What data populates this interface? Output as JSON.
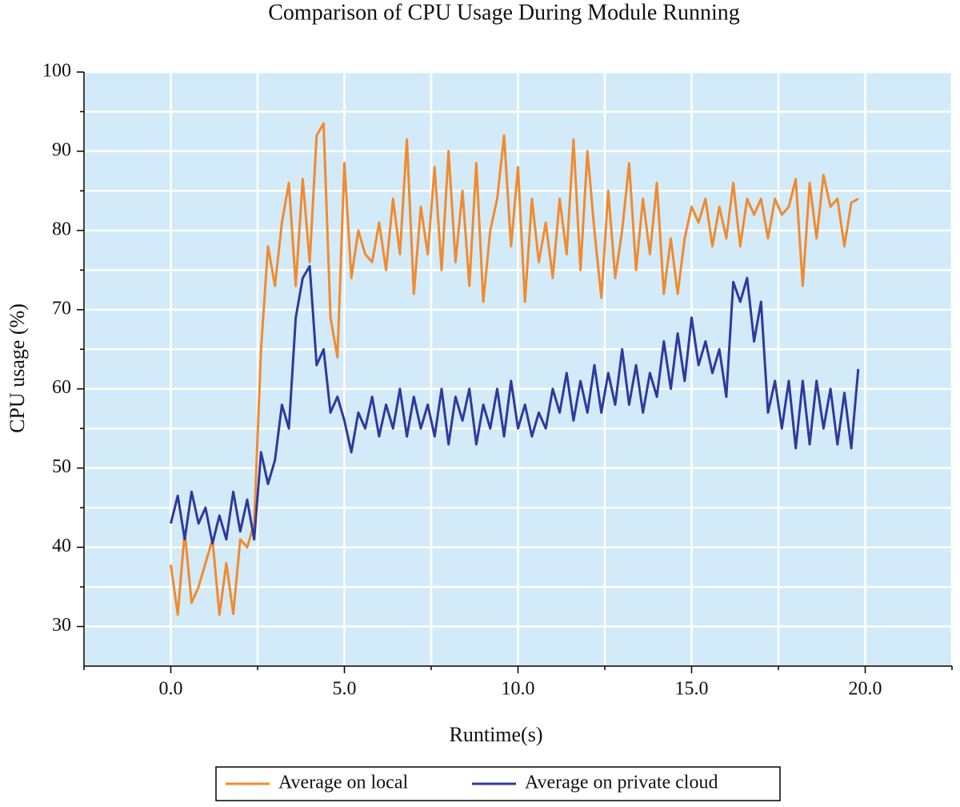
{
  "chart_data": {
    "type": "line",
    "title": "Comparison of CPU Usage During Module Running",
    "xlabel": "Runtime(s)",
    "ylabel": "CPU usage (%)",
    "x": [
      0,
      0.2,
      0.4,
      0.6,
      0.8,
      1.0,
      1.2,
      1.4,
      1.6,
      1.8,
      2.0,
      2.2,
      2.4,
      2.6,
      2.8,
      3.0,
      3.2,
      3.4,
      3.6,
      3.8,
      4.0,
      4.2,
      4.4,
      4.6,
      4.8,
      5.0,
      5.2,
      5.4,
      5.6,
      5.8,
      6.0,
      6.2,
      6.4,
      6.6,
      6.8,
      7.0,
      7.2,
      7.4,
      7.6,
      7.8,
      8.0,
      8.2,
      8.4,
      8.6,
      8.8,
      9.0,
      9.2,
      9.4,
      9.6,
      9.8,
      10.0,
      10.2,
      10.4,
      10.6,
      10.8,
      11.0,
      11.2,
      11.4,
      11.6,
      11.8,
      12.0,
      12.2,
      12.4,
      12.6,
      12.8,
      13.0,
      13.2,
      13.4,
      13.6,
      13.8,
      14.0,
      14.2,
      14.4,
      14.6,
      14.8,
      15.0,
      15.2,
      15.4,
      15.6,
      15.8,
      16.0,
      16.2,
      16.4,
      16.6,
      16.8,
      17.0,
      17.2,
      17.4,
      17.6,
      17.8,
      18.0,
      18.2,
      18.4,
      18.6,
      18.8,
      19.0,
      19.2,
      19.4,
      19.6,
      19.8
    ],
    "series": [
      {
        "name": "Average on local",
        "color": "#f28a2e",
        "values": [
          37.8,
          31.5,
          42,
          33,
          35,
          38,
          41,
          31.5,
          38,
          31.6,
          41,
          40,
          43,
          65,
          78,
          73,
          81,
          86,
          73,
          86.5,
          76,
          92,
          93.5,
          69,
          64,
          88.5,
          74,
          80,
          77,
          76,
          81,
          75,
          84,
          77,
          91.5,
          72,
          83,
          77,
          88,
          75,
          90,
          76,
          85,
          73,
          88.5,
          71,
          80,
          84,
          92,
          78,
          88,
          71,
          84,
          76,
          81,
          74,
          84,
          77,
          91.5,
          75,
          90,
          80,
          71.5,
          85,
          74,
          80,
          88.5,
          75,
          84,
          77,
          86,
          72,
          79,
          72,
          79,
          83,
          81,
          84,
          78,
          83,
          79,
          86,
          78,
          84,
          82,
          84,
          79,
          84,
          82,
          83,
          86.5,
          73,
          86,
          79,
          87,
          83,
          84,
          78,
          83.5,
          84
        ]
      },
      {
        "name": "Average on private cloud",
        "color": "#2e3a9e",
        "values": [
          43,
          46.5,
          41,
          47,
          43,
          45,
          40.5,
          44,
          41,
          47,
          42,
          46,
          41,
          52,
          48,
          51,
          58,
          55,
          69,
          74,
          75.5,
          63,
          65,
          57,
          59,
          56,
          52,
          57,
          55,
          59,
          54,
          58,
          55,
          60,
          54,
          59,
          55,
          58,
          54,
          60,
          53,
          59,
          56,
          60,
          53,
          58,
          55,
          60,
          54,
          61,
          55,
          58,
          54,
          57,
          55,
          60,
          57,
          62,
          56,
          61,
          57,
          63,
          57,
          62,
          58,
          65,
          58,
          63,
          57,
          62,
          59,
          66,
          60,
          67,
          61,
          69,
          63,
          66,
          62,
          65,
          59,
          73.5,
          71,
          74,
          66,
          71,
          57,
          61,
          55,
          61,
          52.5,
          61,
          53,
          61,
          55,
          60,
          53,
          59.5,
          52.5,
          62.5
        ]
      }
    ],
    "xlim": [
      -2.5,
      22.5
    ],
    "ylim": [
      25,
      100
    ],
    "xticks": [
      {
        "value": 0,
        "label": "0.0"
      },
      {
        "value": 5,
        "label": "5.0"
      },
      {
        "value": 10,
        "label": "10.0"
      },
      {
        "value": 15,
        "label": "15.0"
      },
      {
        "value": 20,
        "label": "20.0"
      }
    ],
    "yticks": [
      30,
      40,
      50,
      60,
      70,
      80,
      90,
      100
    ],
    "xminorticks": [
      -2.5,
      2.5,
      7.5,
      12.5,
      17.5,
      22.5
    ],
    "yminorticks": [
      35,
      45,
      55,
      65,
      75,
      85,
      95
    ],
    "grid": true,
    "background": "#d3ebf8",
    "legend": "bottom"
  }
}
